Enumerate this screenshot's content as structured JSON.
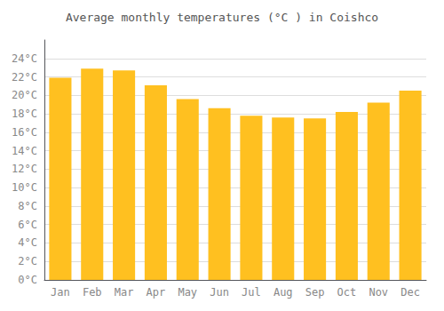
{
  "chart_data": {
    "type": "bar",
    "title": "Average monthly temperatures (°C ) in Coishco",
    "categories": [
      "Jan",
      "Feb",
      "Mar",
      "Apr",
      "May",
      "Jun",
      "Jul",
      "Aug",
      "Sep",
      "Oct",
      "Nov",
      "Dec"
    ],
    "values": [
      21.9,
      22.9,
      22.7,
      21.1,
      19.6,
      18.6,
      17.8,
      17.6,
      17.5,
      18.2,
      19.2,
      20.5
    ],
    "color": "#FFC020",
    "ylim": [
      0,
      26
    ],
    "yticks": [
      {
        "value": 0,
        "label": "0°C"
      },
      {
        "value": 2,
        "label": "2°C"
      },
      {
        "value": 4,
        "label": "4°C"
      },
      {
        "value": 6,
        "label": "6°C"
      },
      {
        "value": 8,
        "label": "8°C"
      },
      {
        "value": 10,
        "label": "10°C"
      },
      {
        "value": 12,
        "label": "12°C"
      },
      {
        "value": 14,
        "label": "14°C"
      },
      {
        "value": 16,
        "label": "16°C"
      },
      {
        "value": 18,
        "label": "18°C"
      },
      {
        "value": 20,
        "label": "20°C"
      },
      {
        "value": 22,
        "label": "22°C"
      },
      {
        "value": 24,
        "label": "24°C"
      }
    ],
    "grid": true
  }
}
